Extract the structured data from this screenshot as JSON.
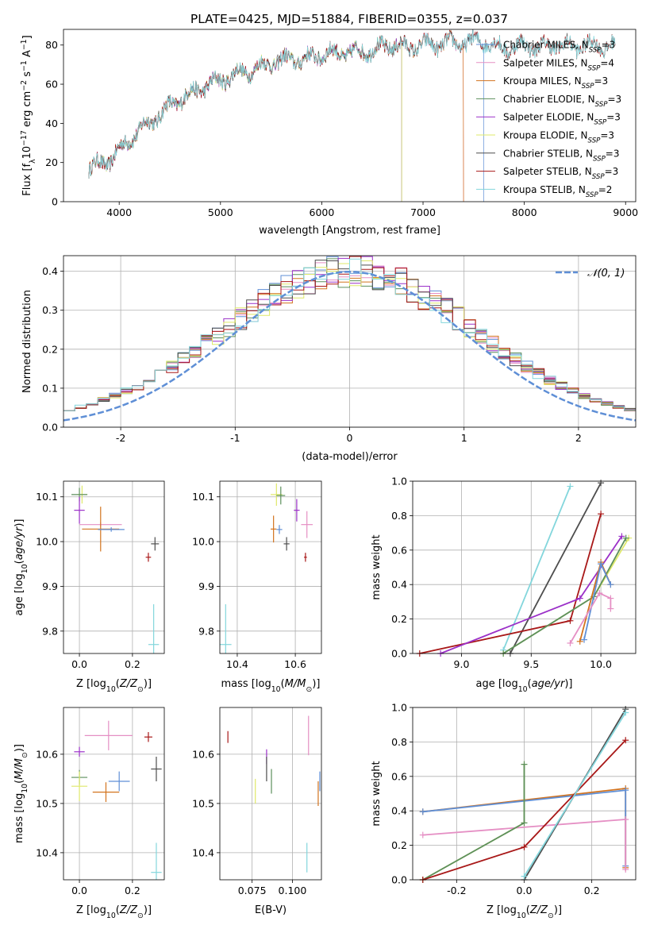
{
  "figure": {
    "title": "PLATE=0425, MJD=51884, FIBERID=0355, z=0.037"
  },
  "colors": {
    "Chabrier MILES": "#5f8fd6",
    "Salpeter MILES": "#e58fc4",
    "Kroupa MILES": "#d2731e",
    "Chabrier ELODIE": "#5c8f5c",
    "Salpeter ELODIE": "#9b30c8",
    "Kroupa ELODIE": "#dfe96a",
    "Chabrier STELIB": "#4d4d4d",
    "Salpeter STELIB": "#a81818",
    "Kroupa STELIB": "#83d6dc"
  },
  "chart_data": [
    {
      "id": "spectrum",
      "type": "line",
      "title": "PLATE=0425, MJD=51884, FIBERID=0355, z=0.037",
      "xlabel": "wavelength [Angstrom, rest frame]",
      "ylabel": "Flux [f_λ 10^-17 erg cm^-2 s^-1 A^-1]",
      "xlim": [
        3450,
        9100
      ],
      "ylim": [
        0,
        88
      ],
      "xticks": [
        4000,
        5000,
        6000,
        7000,
        8000,
        9000
      ],
      "yticks": [
        0,
        20,
        40,
        60,
        80
      ],
      "grid": false,
      "legend_position": "right",
      "x": [
        3700,
        3800,
        3900,
        4000,
        4100,
        4200,
        4300,
        4400,
        4500,
        4600,
        4700,
        4800,
        4900,
        5000,
        5100,
        5200,
        5300,
        5400,
        5500,
        5600,
        5700,
        5800,
        5900,
        6000,
        6100,
        6200,
        6300,
        6400,
        6500,
        6600,
        6700,
        6800,
        6900,
        7000,
        7100,
        7200,
        7300,
        7400,
        7500,
        7600,
        7700,
        7800,
        7900,
        8000,
        8100,
        8200,
        8300,
        8400,
        8500,
        8600,
        8700,
        8800,
        8900
      ],
      "y": [
        17,
        19,
        21,
        26,
        32,
        36,
        41,
        44,
        49,
        52,
        55,
        58,
        60,
        62,
        64,
        66,
        67,
        69,
        71,
        72,
        73,
        72,
        74,
        75,
        76,
        76,
        76,
        77,
        77,
        79,
        80,
        79,
        79,
        80,
        80,
        81,
        81,
        81,
        82,
        82,
        80,
        78,
        79,
        80,
        79,
        79,
        80,
        80,
        79,
        80,
        80,
        79,
        80
      ],
      "series": [
        {
          "name": "Chabrier MILES, N_SSP=3",
          "label_pre": "Chabrier MILES, N",
          "label_post": "=3",
          "color_key": "Chabrier MILES",
          "max_x": 7600
        },
        {
          "name": "Salpeter MILES, N_SSP=4",
          "label_pre": "Salpeter MILES, N",
          "label_post": "=4",
          "color_key": "Salpeter MILES",
          "max_x": 7400
        },
        {
          "name": "Kroupa MILES, N_SSP=3",
          "label_pre": "Kroupa MILES, N",
          "label_post": "=3",
          "color_key": "Kroupa MILES",
          "max_x": 7400
        },
        {
          "name": "Chabrier ELODIE, N_SSP=3",
          "label_pre": "Chabrier ELODIE, N",
          "label_post": "=3",
          "color_key": "Chabrier ELODIE",
          "max_x": 6790
        },
        {
          "name": "Salpeter ELODIE, N_SSP=3",
          "label_pre": "Salpeter ELODIE, N",
          "label_post": "=3",
          "color_key": "Salpeter ELODIE",
          "max_x": 6790
        },
        {
          "name": "Kroupa ELODIE, N_SSP=3",
          "label_pre": "Kroupa ELODIE, N",
          "label_post": "=3",
          "color_key": "Kroupa ELODIE",
          "max_x": 6790
        },
        {
          "name": "Chabrier STELIB, N_SSP=3",
          "label_pre": "Chabrier STELIB, N",
          "label_post": "=3",
          "color_key": "Chabrier STELIB",
          "max_x": 8900
        },
        {
          "name": "Salpeter STELIB, N_SSP=3",
          "label_pre": "Salpeter STELIB, N",
          "label_post": "=3",
          "color_key": "Salpeter STELIB",
          "max_x": 8900
        },
        {
          "name": "Kroupa STELIB, N_SSP=2",
          "label_pre": "Kroupa STELIB, N",
          "label_post": "=2",
          "color_key": "Kroupa STELIB",
          "max_x": 8900
        }
      ],
      "legend_sub": "SSP"
    },
    {
      "id": "residuals",
      "type": "histogram",
      "xlabel": "(data-model)/error",
      "ylabel": "Normed distribution",
      "xlim": [
        -2.5,
        2.5
      ],
      "ylim": [
        0,
        0.44
      ],
      "xticks": [
        -2,
        -1,
        0,
        1,
        2
      ],
      "yticks": [
        0.0,
        0.1,
        0.2,
        0.3,
        0.4
      ],
      "grid": true,
      "legend_position": "top-right",
      "legend_label": "𝒩(0, 1)",
      "bin_width": 0.1,
      "series_colors": [
        "Chabrier MILES",
        "Salpeter MILES",
        "Kroupa MILES",
        "Chabrier ELODIE",
        "Salpeter ELODIE",
        "Kroupa ELODIE",
        "Chabrier STELIB",
        "Salpeter STELIB",
        "Kroupa STELIB"
      ],
      "gaussian_color": "#5f8fd6"
    },
    {
      "id": "age-vs-Z",
      "type": "scatter",
      "xlabel": "Z [log10(Z/Z⊙)]",
      "ylabel": "age [log10(age/yr)]",
      "xlim": [
        -0.06,
        0.32
      ],
      "ylim": [
        9.75,
        10.135
      ],
      "xticks": [
        0.0,
        0.2
      ],
      "yticks": [
        9.8,
        9.9,
        10.0,
        10.1
      ],
      "grid": true,
      "points": [
        {
          "key": "Kroupa ELODIE",
          "x": 0.01,
          "y": 10.105,
          "xerr": 0.02,
          "yerr": 0.02
        },
        {
          "key": "Chabrier ELODIE",
          "x": 0.0,
          "y": 10.105,
          "xerr": 0.03,
          "yerr": 0.015
        },
        {
          "key": "Salpeter ELODIE",
          "x": 0.0,
          "y": 10.07,
          "xerr": 0.02,
          "yerr": 0.03
        },
        {
          "key": "Salpeter MILES",
          "x": 0.08,
          "y": 10.038,
          "xerr": 0.08,
          "yerr": 0.005
        },
        {
          "key": "Kroupa MILES",
          "x": 0.08,
          "y": 10.028,
          "xerr": 0.07,
          "yerr": 0.05
        },
        {
          "key": "Chabrier MILES",
          "x": 0.12,
          "y": 10.027,
          "xerr": 0.05,
          "yerr": 0.005
        },
        {
          "key": "Chabrier STELIB",
          "x": 0.285,
          "y": 9.995,
          "xerr": 0.015,
          "yerr": 0.015
        },
        {
          "key": "Salpeter STELIB",
          "x": 0.26,
          "y": 9.965,
          "xerr": 0.01,
          "yerr": 0.01
        },
        {
          "key": "Kroupa STELIB",
          "x": 0.28,
          "y": 9.77,
          "xerr": 0.02,
          "yerr": 0.09
        }
      ]
    },
    {
      "id": "age-vs-mass",
      "type": "scatter",
      "xlabel": "mass [log10(M/M⊙)]",
      "ylabel": "",
      "xlim": [
        10.34,
        10.69
      ],
      "ylim": [
        9.75,
        10.135
      ],
      "xticks": [
        10.4,
        10.6
      ],
      "yticks": [
        9.8,
        9.9,
        10.0,
        10.1
      ],
      "grid": true,
      "points": [
        {
          "key": "Kroupa ELODIE",
          "x": 10.535,
          "y": 10.105,
          "xerr": 0.02,
          "yerr": 0.025
        },
        {
          "key": "Chabrier ELODIE",
          "x": 10.55,
          "y": 10.103,
          "xerr": 0.015,
          "yerr": 0.02
        },
        {
          "key": "Salpeter ELODIE",
          "x": 10.605,
          "y": 10.07,
          "xerr": 0.01,
          "yerr": 0.025
        },
        {
          "key": "Salpeter MILES",
          "x": 10.64,
          "y": 10.038,
          "xerr": 0.02,
          "yerr": 0.03
        },
        {
          "key": "Kroupa MILES",
          "x": 10.525,
          "y": 10.028,
          "xerr": 0.01,
          "yerr": 0.03
        },
        {
          "key": "Chabrier MILES",
          "x": 10.545,
          "y": 10.027,
          "xerr": 0.01,
          "yerr": 0.01
        },
        {
          "key": "Chabrier STELIB",
          "x": 10.57,
          "y": 9.995,
          "xerr": 0.01,
          "yerr": 0.015
        },
        {
          "key": "Salpeter STELIB",
          "x": 10.635,
          "y": 9.965,
          "xerr": 0.005,
          "yerr": 0.01
        },
        {
          "key": "Kroupa STELIB",
          "x": 10.36,
          "y": 9.77,
          "xerr": 0.02,
          "yerr": 0.09
        }
      ]
    },
    {
      "id": "weight-vs-age",
      "type": "line",
      "xlabel": "age [log10(age/yr)]",
      "ylabel": "mass weight",
      "xlim": [
        8.65,
        10.25
      ],
      "ylim": [
        0,
        1.0
      ],
      "xticks": [
        9.0,
        9.5,
        10.0
      ],
      "yticks": [
        0.0,
        0.2,
        0.4,
        0.6,
        0.8,
        1.0
      ],
      "grid": true,
      "series": [
        {
          "key": "Kroupa STELIB",
          "x": [
            9.3,
            9.78
          ],
          "y": [
            0.02,
            0.97
          ]
        },
        {
          "key": "Chabrier STELIB",
          "x": [
            9.35,
            10.0
          ],
          "y": [
            0.0,
            0.99
          ]
        },
        {
          "key": "Salpeter STELIB",
          "x": [
            8.7,
            9.78,
            10.0
          ],
          "y": [
            0.0,
            0.19,
            0.81
          ]
        },
        {
          "key": "Salpeter ELODIE",
          "x": [
            8.85,
            9.85,
            10.15
          ],
          "y": [
            0.0,
            0.32,
            0.68
          ]
        },
        {
          "key": "Kroupa ELODIE",
          "x": [
            9.3,
            9.95,
            10.2
          ],
          "y": [
            0.0,
            0.33,
            0.67
          ]
        },
        {
          "key": "Chabrier ELODIE",
          "x": [
            9.3,
            9.95,
            10.18
          ],
          "y": [
            0.0,
            0.33,
            0.67
          ]
        },
        {
          "key": "Kroupa MILES",
          "x": [
            9.85,
            10.0,
            10.07
          ],
          "y": [
            0.07,
            0.53,
            0.4
          ]
        },
        {
          "key": "Chabrier MILES",
          "x": [
            9.88,
            10.0,
            10.07
          ],
          "y": [
            0.08,
            0.52,
            0.4
          ]
        },
        {
          "key": "Salpeter MILES",
          "x": [
            9.78,
            9.99,
            10.07,
            10.07
          ],
          "y": [
            0.06,
            0.35,
            0.32,
            0.26
          ]
        }
      ]
    },
    {
      "id": "mass-vs-Z",
      "type": "scatter",
      "xlabel": "Z [log10(Z/Z⊙)]",
      "ylabel": "mass [log10(M/M⊙)]",
      "xlim": [
        -0.06,
        0.32
      ],
      "ylim": [
        10.345,
        10.695
      ],
      "xticks": [
        0.0,
        0.2
      ],
      "yticks": [
        10.4,
        10.5,
        10.6
      ],
      "grid": true,
      "points": [
        {
          "key": "Salpeter MILES",
          "x": 0.11,
          "y": 10.638,
          "xerr": 0.09,
          "yerr": 0.03
        },
        {
          "key": "Salpeter STELIB",
          "x": 0.26,
          "y": 10.635,
          "xerr": 0.015,
          "yerr": 0.01
        },
        {
          "key": "Salpeter ELODIE",
          "x": 0.0,
          "y": 10.605,
          "xerr": 0.02,
          "yerr": 0.01
        },
        {
          "key": "Chabrier STELIB",
          "x": 0.29,
          "y": 10.57,
          "xerr": 0.02,
          "yerr": 0.025
        },
        {
          "key": "Chabrier ELODIE",
          "x": 0.0,
          "y": 10.553,
          "xerr": 0.03,
          "yerr": 0.015
        },
        {
          "key": "Chabrier MILES",
          "x": 0.15,
          "y": 10.545,
          "xerr": 0.04,
          "yerr": 0.02
        },
        {
          "key": "Kroupa ELODIE",
          "x": 0.0,
          "y": 10.535,
          "xerr": 0.03,
          "yerr": 0.03
        },
        {
          "key": "Kroupa MILES",
          "x": 0.1,
          "y": 10.523,
          "xerr": 0.05,
          "yerr": 0.02
        },
        {
          "key": "Kroupa STELIB",
          "x": 0.29,
          "y": 10.36,
          "xerr": 0.02,
          "yerr": 0.06
        }
      ]
    },
    {
      "id": "mass-vs-ebv",
      "type": "scatter",
      "xlabel": "E(B-V)",
      "ylabel": "",
      "xlim": [
        0.055,
        0.118
      ],
      "ylim": [
        10.345,
        10.695
      ],
      "xticks": [
        0.075,
        0.1
      ],
      "yticks": [
        10.4,
        10.5,
        10.6
      ],
      "grid": true,
      "points": [
        {
          "key": "Salpeter STELIB",
          "x": 0.06,
          "y": 10.635,
          "xerr": 0.0,
          "yerr": 0.012
        },
        {
          "key": "Salpeter MILES",
          "x": 0.11,
          "y": 10.638,
          "xerr": 0.0,
          "yerr": 0.04
        },
        {
          "key": "Salpeter ELODIE",
          "x": 0.084,
          "y": 10.595,
          "xerr": 0.0,
          "yerr": 0.015
        },
        {
          "key": "Chabrier STELIB",
          "x": 0.084,
          "y": 10.57,
          "xerr": 0.0,
          "yerr": 0.025
        },
        {
          "key": "Chabrier ELODIE",
          "x": 0.087,
          "y": 10.545,
          "xerr": 0.0,
          "yerr": 0.025
        },
        {
          "key": "Kroupa ELODIE",
          "x": 0.077,
          "y": 10.525,
          "xerr": 0.0,
          "yerr": 0.025
        },
        {
          "key": "Chabrier MILES",
          "x": 0.117,
          "y": 10.545,
          "xerr": 0.0,
          "yerr": 0.02
        },
        {
          "key": "Kroupa MILES",
          "x": 0.116,
          "y": 10.52,
          "xerr": 0.0,
          "yerr": 0.025
        },
        {
          "key": "Kroupa STELIB",
          "x": 0.109,
          "y": 10.39,
          "xerr": 0.0,
          "yerr": 0.03
        }
      ]
    },
    {
      "id": "weight-vs-Z",
      "type": "line",
      "xlabel": "Z [log10(Z/Z⊙)]",
      "ylabel": "mass weight",
      "xlim": [
        -0.33,
        0.33
      ],
      "ylim": [
        0,
        1.0
      ],
      "xticks": [
        -0.2,
        0.0,
        0.2
      ],
      "yticks": [
        0.0,
        0.2,
        0.4,
        0.6,
        0.8,
        1.0
      ],
      "grid": true,
      "series": [
        {
          "key": "Kroupa MILES",
          "x": [
            -0.3,
            0.3,
            0.3
          ],
          "y": [
            0.395,
            0.53,
            0.07
          ]
        },
        {
          "key": "Chabrier MILES",
          "x": [
            -0.3,
            0.3,
            0.3
          ],
          "y": [
            0.395,
            0.52,
            0.08
          ]
        },
        {
          "key": "Salpeter MILES",
          "x": [
            -0.3,
            0.3,
            0.3
          ],
          "y": [
            0.26,
            0.35,
            0.06
          ]
        },
        {
          "key": "Kroupa ELODIE",
          "x": [
            -0.3,
            0.0,
            0.0
          ],
          "y": [
            0.0,
            0.33,
            0.67
          ]
        },
        {
          "key": "Chabrier ELODIE",
          "x": [
            -0.3,
            0.0,
            0.0
          ],
          "y": [
            0.0,
            0.33,
            0.67
          ]
        },
        {
          "key": "Salpeter STELIB",
          "x": [
            -0.3,
            0.0,
            0.3
          ],
          "y": [
            0.0,
            0.19,
            0.81
          ]
        },
        {
          "key": "Chabrier STELIB",
          "x": [
            0.0,
            0.3
          ],
          "y": [
            0.0,
            0.99
          ]
        },
        {
          "key": "Kroupa STELIB",
          "x": [
            0.0,
            0.3
          ],
          "y": [
            0.02,
            0.97
          ]
        }
      ]
    }
  ]
}
